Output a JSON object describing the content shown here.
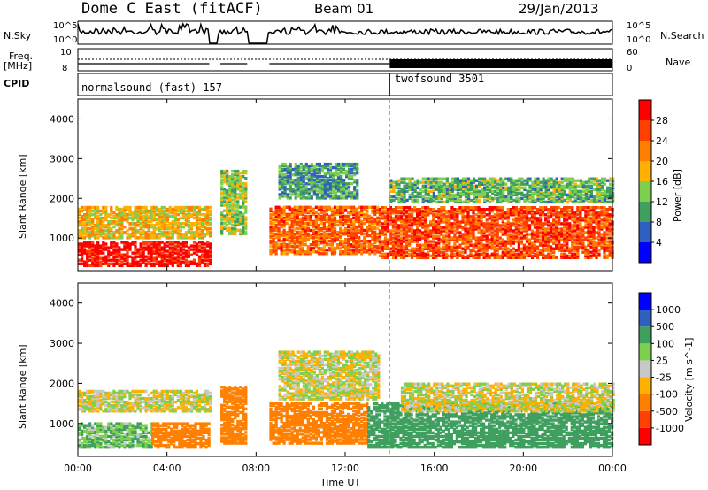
{
  "header": {
    "station": "Dome C East (fitACF)",
    "beam": "Beam 01",
    "date": "29/Jan/2013"
  },
  "top_panels": {
    "nsky_label": "N.Sky",
    "nsearch_label": "N.Search",
    "noise_ticks": [
      "10^5",
      "10^0"
    ],
    "freq_label_line1": "Freq.",
    "freq_label_line2": "[MHz]",
    "freq_ticks": [
      "10",
      "8"
    ],
    "nave_label": "Nave",
    "nave_ticks": [
      "60",
      "0"
    ],
    "cpid_label": "CPID",
    "cpid_segments": [
      {
        "name": "normalsound (fast) 157",
        "start_hour": 0
      },
      {
        "name": "twofsound 3501",
        "start_hour": 14
      }
    ]
  },
  "colors": {
    "power": [
      "#0000ff",
      "#2f5fbf",
      "#3f9f5f",
      "#7fcf4f",
      "#ffb000",
      "#ff7f00",
      "#ff4000",
      "#ff0000"
    ],
    "velocity": [
      "#ff0000",
      "#ff4000",
      "#ff7f00",
      "#ffb000",
      "#c8c8c8",
      "#7fcf4f",
      "#3f9f5f",
      "#2f5fbf",
      "#0000ff"
    ],
    "noise_line": "#000000"
  },
  "chart_data": [
    {
      "type": "heatmap",
      "title": "",
      "xlabel": "Time UT",
      "ylabel": "Slant Range [km]",
      "x_ticks": [
        "00:00",
        "04:00",
        "08:00",
        "12:00",
        "16:00",
        "20:00",
        "00:00"
      ],
      "y_ticks": [
        1000,
        2000,
        3000,
        4000
      ],
      "xlim_hours": [
        0,
        24
      ],
      "ylim_km": [
        180,
        4500
      ],
      "colorbar": {
        "label": "Power [dB]",
        "ticks": [
          4,
          8,
          12,
          16,
          20,
          24,
          28
        ],
        "range": [
          0,
          32
        ]
      },
      "echo_bands": [
        {
          "start": 0.0,
          "end": 5.9,
          "low": 300,
          "high": 900,
          "value": 30
        },
        {
          "start": 0.0,
          "end": 5.9,
          "low": 1000,
          "high": 1800,
          "value": 18
        },
        {
          "start": 6.4,
          "end": 7.6,
          "low": 1100,
          "high": 2700,
          "value": 14
        },
        {
          "start": 8.6,
          "end": 13.5,
          "low": 600,
          "high": 1800,
          "value": 24
        },
        {
          "start": 9.0,
          "end": 12.5,
          "low": 2000,
          "high": 2900,
          "value": 10
        },
        {
          "start": 13.5,
          "end": 24.0,
          "low": 500,
          "high": 1800,
          "value": 26
        },
        {
          "start": 14.0,
          "end": 24.0,
          "low": 1900,
          "high": 2500,
          "value": 12
        }
      ],
      "gaps_hours": [
        [
          5.9,
          6.3
        ],
        [
          7.6,
          8.5
        ]
      ]
    },
    {
      "type": "heatmap",
      "title": "",
      "xlabel": "Time UT",
      "ylabel": "Slant Range [km]",
      "x_ticks": [
        "00:00",
        "04:00",
        "08:00",
        "12:00",
        "16:00",
        "20:00",
        "00:00"
      ],
      "y_ticks": [
        1000,
        2000,
        3000,
        4000
      ],
      "xlim_hours": [
        0,
        24
      ],
      "ylim_km": [
        180,
        4500
      ],
      "colorbar": {
        "label": "Velocity [m s^-1]",
        "ticks": [
          1000,
          500,
          100,
          25,
          -25,
          -100,
          -500,
          -1000
        ]
      },
      "echo_bands": [
        {
          "start": 0.0,
          "end": 3.3,
          "low": 400,
          "high": 1000,
          "value": 100
        },
        {
          "start": 3.3,
          "end": 5.9,
          "low": 400,
          "high": 1000,
          "value": -200
        },
        {
          "start": 0.0,
          "end": 5.9,
          "low": 1300,
          "high": 1800,
          "value": 0
        },
        {
          "start": 6.4,
          "end": 7.6,
          "low": 500,
          "high": 1900,
          "value": -200
        },
        {
          "start": 8.6,
          "end": 13.0,
          "low": 500,
          "high": 1500,
          "value": -300
        },
        {
          "start": 9.0,
          "end": 13.5,
          "low": 1600,
          "high": 2800,
          "value": 0
        },
        {
          "start": 13.0,
          "end": 24.0,
          "low": 400,
          "high": 1500,
          "value": 200
        },
        {
          "start": 14.5,
          "end": 24.0,
          "low": 1300,
          "high": 2000,
          "value": 0
        }
      ],
      "gaps_hours": [
        [
          5.9,
          6.3
        ],
        [
          7.6,
          8.5
        ]
      ]
    }
  ]
}
